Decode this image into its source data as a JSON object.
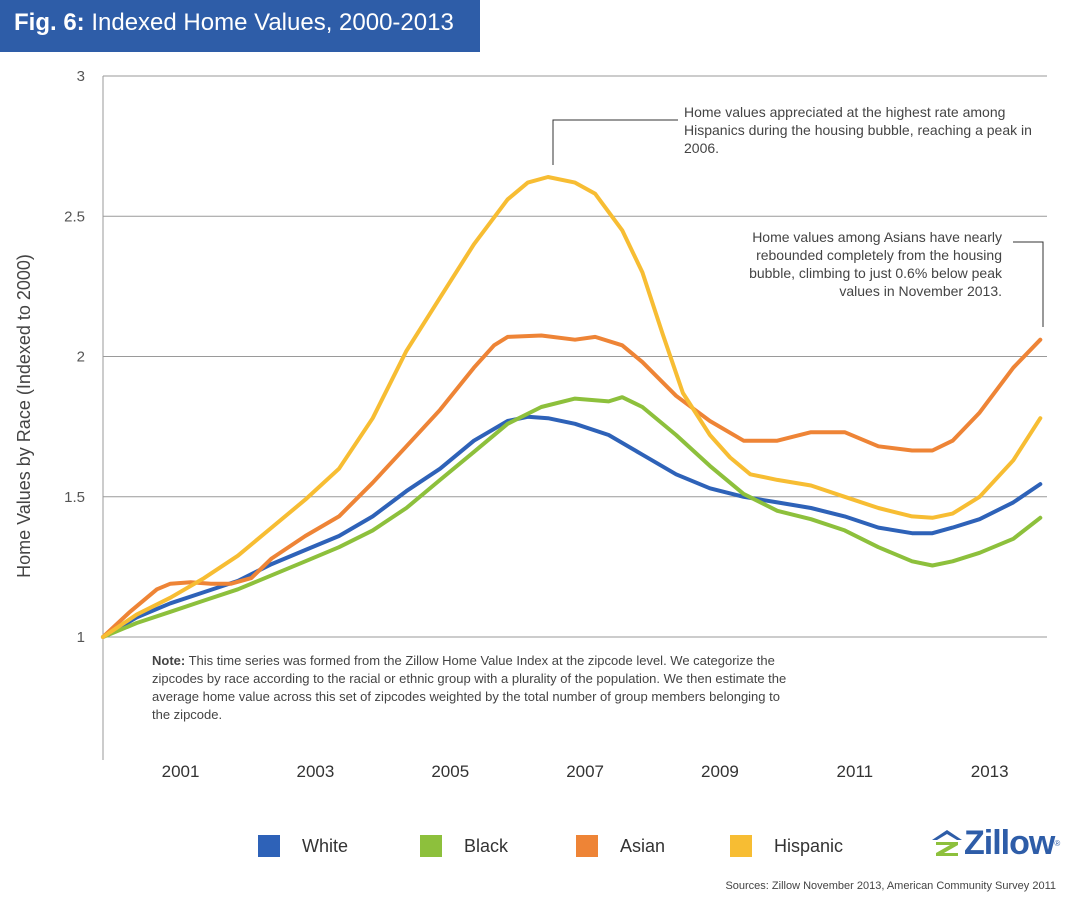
{
  "title": {
    "prefix": "Fig. 6:",
    "text": "Indexed Home Values, 2000-2013"
  },
  "chart_data": {
    "type": "line",
    "ylabel": "Home Values by Race (Indexed to 2000)",
    "xlabel": "",
    "ylim": [
      0.6,
      3
    ],
    "yticks": [
      1,
      1.5,
      2,
      2.5,
      3
    ],
    "xlim": [
      2000.0,
      2014.0
    ],
    "xticks": [
      2001,
      2003,
      2005,
      2007,
      2009,
      2011,
      2013
    ],
    "grid": true,
    "legend_position": "bottom",
    "series": [
      {
        "name": "White",
        "color": "#2e62b8",
        "x": [
          2000.0,
          2000.5,
          2001.0,
          2001.5,
          2002.0,
          2002.5,
          2003.0,
          2003.5,
          2004.0,
          2004.5,
          2005.0,
          2005.5,
          2006.0,
          2006.3,
          2006.6,
          2007.0,
          2007.5,
          2008.0,
          2008.5,
          2009.0,
          2009.5,
          2010.0,
          2010.5,
          2011.0,
          2011.5,
          2012.0,
          2012.3,
          2012.6,
          2013.0,
          2013.5,
          2013.9
        ],
        "values": [
          1.0,
          1.07,
          1.12,
          1.16,
          1.2,
          1.26,
          1.31,
          1.36,
          1.43,
          1.52,
          1.6,
          1.7,
          1.77,
          1.785,
          1.78,
          1.76,
          1.72,
          1.65,
          1.58,
          1.53,
          1.5,
          1.48,
          1.46,
          1.43,
          1.39,
          1.37,
          1.37,
          1.39,
          1.42,
          1.48,
          1.545
        ]
      },
      {
        "name": "Black",
        "color": "#8dc03c",
        "x": [
          2000.0,
          2000.5,
          2001.0,
          2001.5,
          2002.0,
          2002.5,
          2003.0,
          2003.5,
          2004.0,
          2004.5,
          2005.0,
          2005.5,
          2006.0,
          2006.5,
          2007.0,
          2007.5,
          2007.7,
          2008.0,
          2008.5,
          2009.0,
          2009.5,
          2010.0,
          2010.5,
          2011.0,
          2011.5,
          2012.0,
          2012.3,
          2012.6,
          2013.0,
          2013.5,
          2013.9
        ],
        "values": [
          1.0,
          1.05,
          1.09,
          1.13,
          1.17,
          1.22,
          1.27,
          1.32,
          1.38,
          1.46,
          1.56,
          1.66,
          1.76,
          1.82,
          1.85,
          1.84,
          1.855,
          1.82,
          1.72,
          1.61,
          1.51,
          1.45,
          1.42,
          1.38,
          1.32,
          1.27,
          1.255,
          1.27,
          1.3,
          1.35,
          1.425
        ]
      },
      {
        "name": "Asian",
        "color": "#ee8436",
        "x": [
          2000.0,
          2000.4,
          2000.8,
          2001.0,
          2001.3,
          2001.6,
          2001.9,
          2002.2,
          2002.5,
          2003.0,
          2003.5,
          2004.0,
          2004.5,
          2005.0,
          2005.5,
          2005.8,
          2006.0,
          2006.5,
          2007.0,
          2007.3,
          2007.7,
          2008.0,
          2008.5,
          2009.0,
          2009.5,
          2010.0,
          2010.5,
          2011.0,
          2011.5,
          2012.0,
          2012.3,
          2012.6,
          2013.0,
          2013.5,
          2013.9
        ],
        "values": [
          1.0,
          1.09,
          1.17,
          1.19,
          1.195,
          1.19,
          1.19,
          1.21,
          1.28,
          1.36,
          1.43,
          1.55,
          1.68,
          1.81,
          1.96,
          2.04,
          2.07,
          2.075,
          2.06,
          2.07,
          2.04,
          1.98,
          1.86,
          1.77,
          1.7,
          1.7,
          1.73,
          1.73,
          1.68,
          1.665,
          1.665,
          1.7,
          1.8,
          1.96,
          2.06
        ]
      },
      {
        "name": "Hispanic",
        "color": "#f7bd33",
        "x": [
          2000.0,
          2000.5,
          2001.0,
          2001.5,
          2002.0,
          2002.5,
          2003.0,
          2003.5,
          2004.0,
          2004.5,
          2005.0,
          2005.5,
          2006.0,
          2006.3,
          2006.6,
          2007.0,
          2007.3,
          2007.7,
          2008.0,
          2008.3,
          2008.6,
          2009.0,
          2009.3,
          2009.6,
          2010.0,
          2010.5,
          2011.0,
          2011.5,
          2012.0,
          2012.3,
          2012.6,
          2013.0,
          2013.5,
          2013.9
        ],
        "values": [
          1.0,
          1.08,
          1.14,
          1.21,
          1.29,
          1.39,
          1.49,
          1.6,
          1.78,
          2.02,
          2.21,
          2.4,
          2.56,
          2.62,
          2.64,
          2.62,
          2.58,
          2.45,
          2.3,
          2.08,
          1.87,
          1.72,
          1.64,
          1.58,
          1.56,
          1.54,
          1.5,
          1.46,
          1.43,
          1.425,
          1.44,
          1.5,
          1.63,
          1.78
        ]
      }
    ]
  },
  "annotations": {
    "hispanic": "Home values appreciated at the highest rate among Hispanics during the housing bubble, reaching a peak in 2006.",
    "asian": "Home values among Asians have nearly rebounded completely from the housing bubble, climbing to just 0.6% below peak values in November 2013."
  },
  "note": {
    "label": "Note:",
    "text": "This time series was formed from the Zillow Home Value Index at the zipcode level. We categorize the zipcodes by race according to the racial or ethnic group with a plurality of the population. We then estimate the average home value across this set of zipcodes weighted by the total number of group members belonging to the zipcode."
  },
  "legend": [
    {
      "label": "White",
      "color": "#2e62b8"
    },
    {
      "label": "Black",
      "color": "#8dc03c"
    },
    {
      "label": "Asian",
      "color": "#ee8436"
    },
    {
      "label": "Hispanic",
      "color": "#f7bd33"
    }
  ],
  "logo": {
    "text": "Zillow",
    "reg": "®",
    "icon": "zillow-logo-icon"
  },
  "sources": "Sources: Zillow November 2013, American Community Survey 2011"
}
